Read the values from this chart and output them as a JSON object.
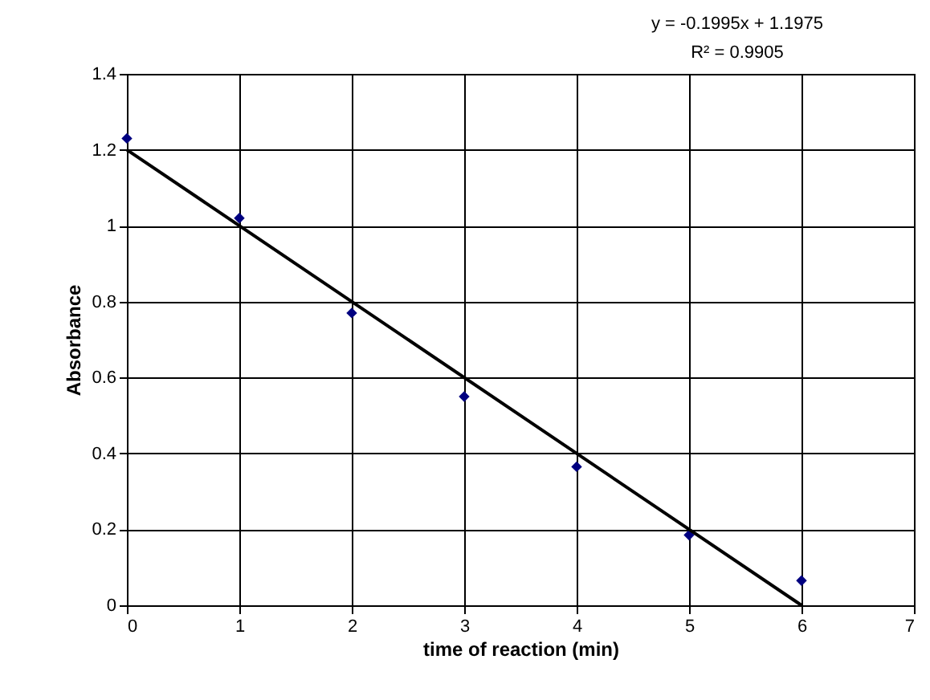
{
  "chart_data": {
    "type": "scatter",
    "xlabel": "time of reaction (min)",
    "ylabel": "Absorbance",
    "annotations": [
      "y = -0.1995x + 1.1975",
      "R² = 0.9905"
    ],
    "xlim": [
      0,
      7
    ],
    "xticks": [
      0,
      1,
      2,
      3,
      4,
      5,
      6,
      7
    ],
    "ylim": [
      0,
      1.4
    ],
    "yticks": [
      0,
      0.2,
      0.4,
      0.6,
      0.8,
      1,
      1.2,
      1.4
    ],
    "grid": true,
    "series": [
      {
        "color": "#000080",
        "marker": "diamond",
        "x": [
          0,
          1,
          2,
          3,
          4,
          5,
          6
        ],
        "values": [
          1.23,
          1.02,
          0.77,
          0.55,
          0.365,
          0.185,
          0.065
        ]
      },
      {
        "type": "line",
        "color": "#000000",
        "line_style": "solid",
        "x": [
          0,
          6
        ],
        "values": [
          1.2,
          0
        ]
      }
    ]
  }
}
